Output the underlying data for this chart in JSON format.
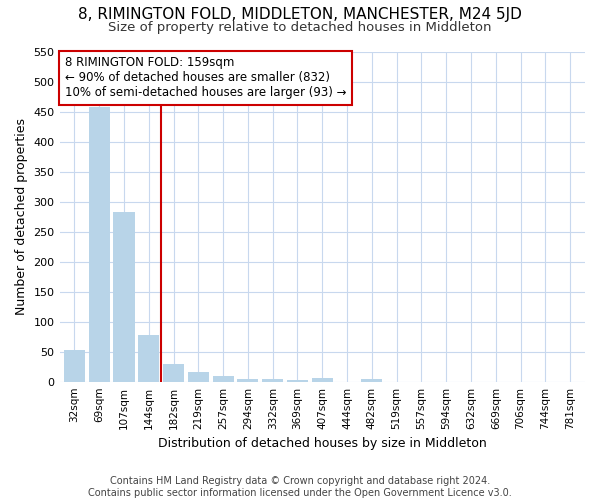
{
  "title": "8, RIMINGTON FOLD, MIDDLETON, MANCHESTER, M24 5JD",
  "subtitle": "Size of property relative to detached houses in Middleton",
  "xlabel": "Distribution of detached houses by size in Middleton",
  "ylabel": "Number of detached properties",
  "categories": [
    "32sqm",
    "69sqm",
    "107sqm",
    "144sqm",
    "182sqm",
    "219sqm",
    "257sqm",
    "294sqm",
    "332sqm",
    "369sqm",
    "407sqm",
    "444sqm",
    "482sqm",
    "519sqm",
    "557sqm",
    "594sqm",
    "632sqm",
    "669sqm",
    "706sqm",
    "744sqm",
    "781sqm"
  ],
  "values": [
    53,
    457,
    283,
    78,
    30,
    16,
    9,
    5,
    4,
    3,
    6,
    0,
    4,
    0,
    0,
    0,
    0,
    0,
    0,
    0,
    0
  ],
  "bar_color": "#b8d4e8",
  "vline_x": 3.5,
  "vline_color": "#cc0000",
  "annotation_text": "8 RIMINGTON FOLD: 159sqm\n← 90% of detached houses are smaller (832)\n10% of semi-detached houses are larger (93) →",
  "annotation_box_color": "#ffffff",
  "annotation_box_edge": "#cc0000",
  "footer_line1": "Contains HM Land Registry data © Crown copyright and database right 2024.",
  "footer_line2": "Contains public sector information licensed under the Open Government Licence v3.0.",
  "ylim": [
    0,
    550
  ],
  "yticks": [
    0,
    50,
    100,
    150,
    200,
    250,
    300,
    350,
    400,
    450,
    500,
    550
  ],
  "background_color": "#ffffff",
  "grid_color": "#c8d8ee"
}
